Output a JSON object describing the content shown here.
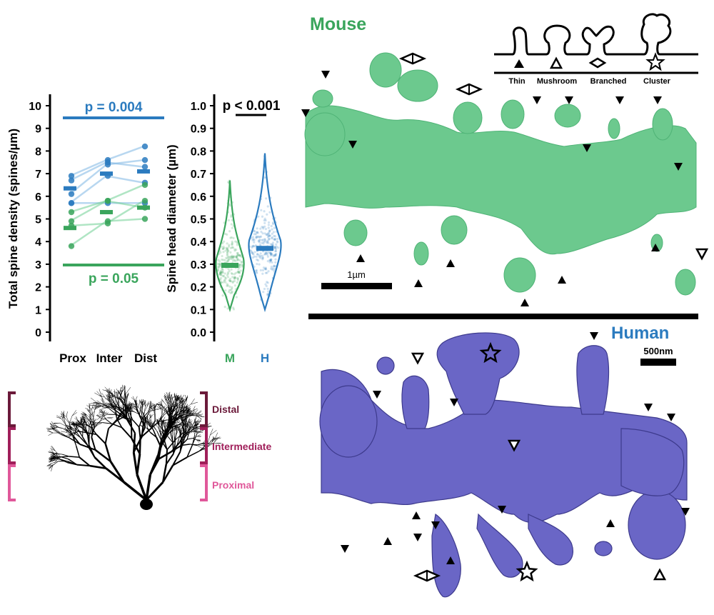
{
  "panel_titles": {
    "mouse": "Mouse",
    "human": "Human"
  },
  "colors": {
    "mouse": "#3aa55c",
    "mouse_light": "#6fcf93",
    "mouse_dendrite": "#6cc98e",
    "human": "#2b7bbf",
    "human_light": "#7eb6e4",
    "human_dendrite": "#6a66c6",
    "distal": "#6b1a3a",
    "intermediate": "#a01f5a",
    "proximal": "#e0589a"
  },
  "scale_bars": {
    "mouse": "1µm",
    "human": "500nm"
  },
  "spine_types": {
    "labels": [
      "Thin",
      "Mushroom",
      "Branched",
      "Cluster"
    ],
    "markers": [
      "filled-triangle-icon",
      "open-triangle-icon",
      "diamond-icon",
      "star-icon"
    ]
  },
  "morphology_labels": {
    "distal": "Distal",
    "intermediate": "Intermediate",
    "proximal": "Proximal"
  },
  "chart_data": [
    {
      "type": "scatter",
      "title": "",
      "xlabel": "",
      "ylabel": "Total spine density (spines/µm)",
      "categories": [
        "Prox",
        "Inter",
        "Dist"
      ],
      "ylim": [
        0,
        10
      ],
      "yticks": [
        0,
        1,
        2,
        3,
        4,
        5,
        6,
        7,
        8,
        9,
        10
      ],
      "series": [
        {
          "group": "human",
          "color": "#2b7bbf",
          "individuals": [
            [
              6.9,
              7.6,
              8.2
            ],
            [
              6.7,
              7.5,
              7.3
            ],
            [
              6.1,
              7.4,
              7.6
            ],
            [
              5.7,
              6.9,
              6.6
            ],
            [
              5.7,
              5.7,
              5.7
            ]
          ],
          "means": [
            6.35,
            7.0,
            7.1
          ]
        },
        {
          "group": "mouse",
          "color": "#3aa55c",
          "individuals": [
            [
              5.3,
              5.8,
              6.5
            ],
            [
              4.9,
              5.8,
              5.5
            ],
            [
              4.7,
              4.8,
              5.8
            ],
            [
              3.8,
              4.9,
              5.0
            ]
          ],
          "means": [
            4.6,
            5.3,
            5.5
          ]
        }
      ],
      "annotations": [
        {
          "text": "p = 0.004",
          "group": "human"
        },
        {
          "text": "p = 0.05",
          "group": "mouse"
        }
      ]
    },
    {
      "type": "violin",
      "title": "",
      "xlabel": "",
      "ylabel": "Spine head diameter (µm)",
      "categories": [
        "M",
        "H"
      ],
      "ylim": [
        0.0,
        1.0
      ],
      "yticks": [
        0.0,
        0.1,
        0.2,
        0.3,
        0.4,
        0.5,
        0.6,
        0.7,
        0.8,
        0.9,
        1.0
      ],
      "series": [
        {
          "group": "M",
          "color": "#3aa55c",
          "min": 0.1,
          "max": 0.67,
          "median": 0.295,
          "mode": 0.3
        },
        {
          "group": "H",
          "color": "#2b7bbf",
          "min": 0.1,
          "max": 0.79,
          "median": 0.37,
          "mode": 0.38
        }
      ],
      "annotations": [
        {
          "text": "p < 0.001"
        }
      ]
    }
  ]
}
